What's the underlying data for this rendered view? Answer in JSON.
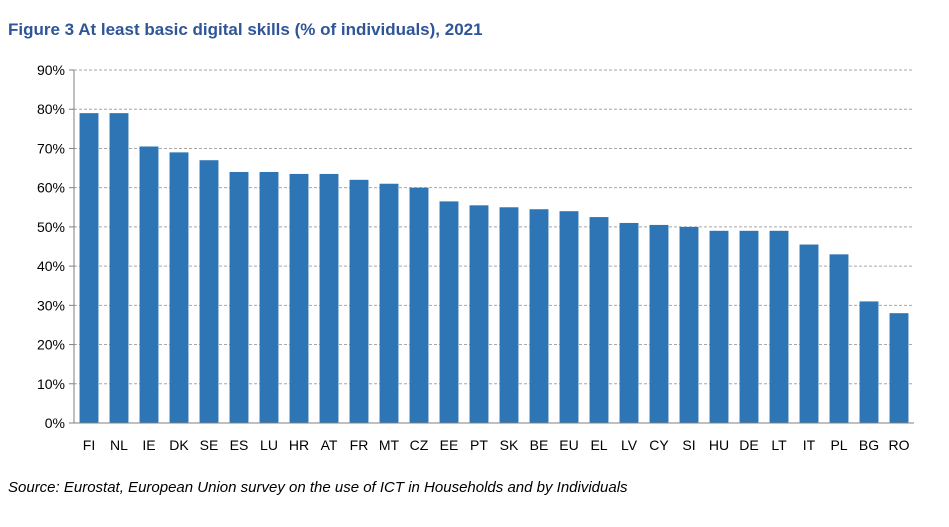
{
  "chart_data": {
    "type": "bar",
    "title": "Figure 3 At least basic digital skills (% of individuals), 2021",
    "xlabel": "",
    "ylabel": "",
    "categories": [
      "FI",
      "NL",
      "IE",
      "DK",
      "SE",
      "ES",
      "LU",
      "HR",
      "AT",
      "FR",
      "MT",
      "CZ",
      "EE",
      "PT",
      "SK",
      "BE",
      "EU",
      "EL",
      "LV",
      "CY",
      "SI",
      "HU",
      "DE",
      "LT",
      "IT",
      "PL",
      "BG",
      "RO"
    ],
    "values": [
      79,
      79,
      70.5,
      69,
      67,
      64,
      64,
      63.5,
      63.5,
      62,
      61,
      60,
      56.5,
      55.5,
      55,
      54.5,
      54,
      52.5,
      51,
      50.5,
      50,
      49,
      49,
      49,
      45.5,
      43,
      31,
      28
    ],
    "ylim": [
      0,
      90
    ],
    "yticks": [
      "0%",
      "10%",
      "20%",
      "30%",
      "40%",
      "50%",
      "60%",
      "70%",
      "80%",
      "90%"
    ],
    "grid": true,
    "legend": "none",
    "bar_color": "#2e75b6",
    "grid_color": "#a6a6a6"
  },
  "source": "Source: Eurostat, European Union survey on the use of ICT in Households and by Individuals"
}
